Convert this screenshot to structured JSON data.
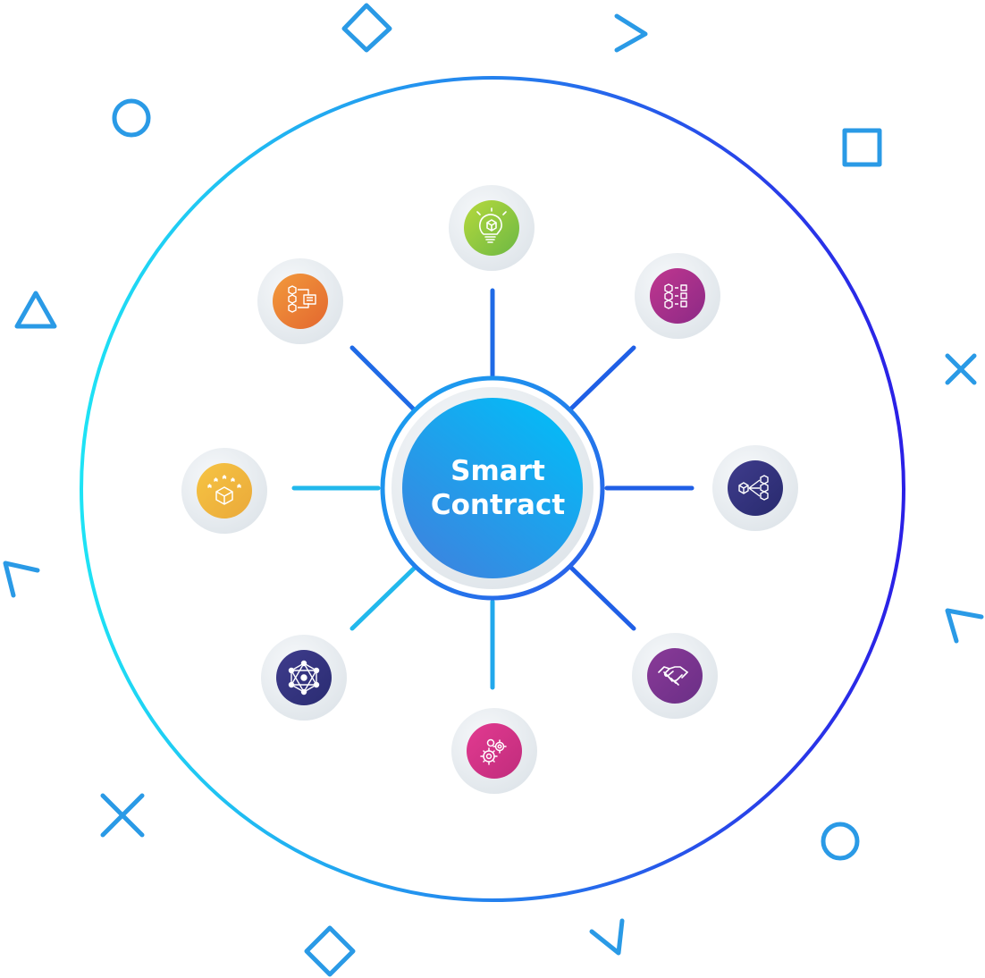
{
  "center": {
    "line1": "Smart",
    "line2": "Contract"
  },
  "colors": {
    "ring_start": "#1ee3f5",
    "ring_end": "#2a1fe6",
    "spoke_light": "#22b8ec",
    "spoke_dark": "#1f5fe6",
    "deco": "#2aa0e6",
    "center_fill_top": "#06b9f6",
    "center_fill_bottom": "#3a86e0"
  },
  "nodes": [
    {
      "id": "idea",
      "icon": "lightbulb-cube-icon",
      "color_a": "#b6d93c",
      "color_b": "#6cb844"
    },
    {
      "id": "checklist",
      "icon": "cube-checklist-icon",
      "color_a": "#c0368f",
      "color_b": "#8c2a86"
    },
    {
      "id": "network",
      "icon": "cube-network-icon",
      "color_a": "#3f3c8c",
      "color_b": "#282a6e"
    },
    {
      "id": "agreement",
      "icon": "handshake-icon",
      "color_a": "#8a3a98",
      "color_b": "#6a2f86"
    },
    {
      "id": "automation",
      "icon": "gears-icon",
      "color_a": "#e23a90",
      "color_b": "#c02c7c"
    },
    {
      "id": "decentralized",
      "icon": "hexagon-network-icon",
      "color_a": "#3f3c8c",
      "color_b": "#2a2c72"
    },
    {
      "id": "rating",
      "icon": "cube-stars-icon",
      "color_a": "#f6c443",
      "color_b": "#eaa93a"
    },
    {
      "id": "workflow",
      "icon": "cube-flow-icon",
      "color_a": "#f29a3c",
      "color_b": "#e3672f"
    }
  ],
  "decorations": [
    {
      "shape": "diamond-icon"
    },
    {
      "shape": "chevron-icon"
    },
    {
      "shape": "circle-icon"
    },
    {
      "shape": "square-icon"
    },
    {
      "shape": "triangle-icon"
    },
    {
      "shape": "cross-icon"
    },
    {
      "shape": "chevron-icon"
    },
    {
      "shape": "chevron-icon"
    },
    {
      "shape": "cross-icon"
    },
    {
      "shape": "circle-icon"
    },
    {
      "shape": "diamond-icon"
    },
    {
      "shape": "chevron-icon"
    }
  ]
}
